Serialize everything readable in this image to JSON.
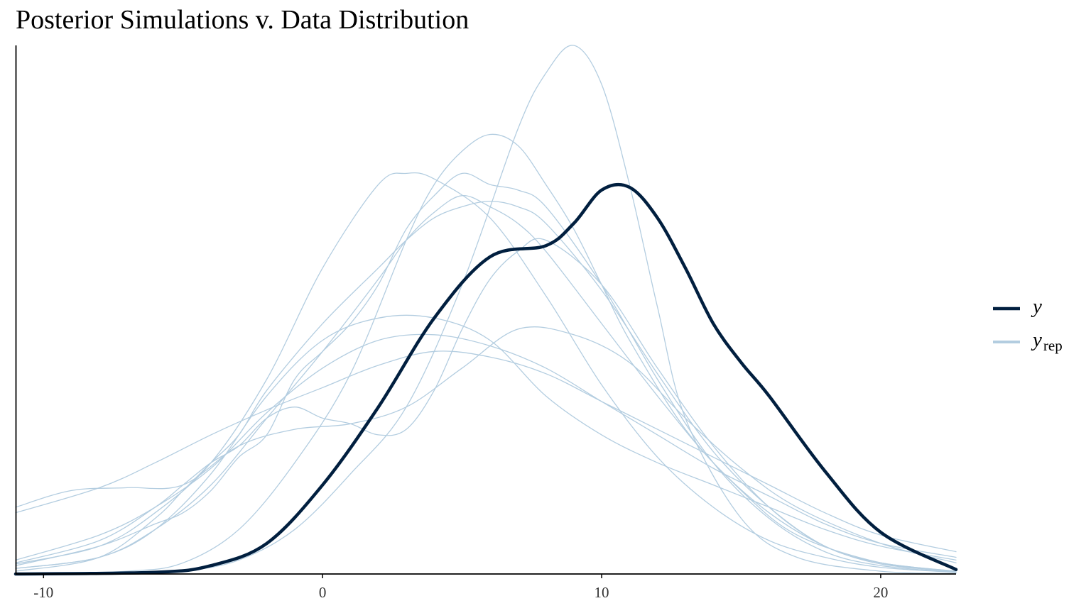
{
  "chart_data": {
    "type": "area",
    "title": "Posterior Simulations v. Data Distribution",
    "xlabel": "",
    "ylabel": "",
    "xlim": [
      -11,
      22.7
    ],
    "ylim": [
      0,
      0.095
    ],
    "x_ticks": [
      -10,
      0,
      10,
      20
    ],
    "x_tick_labels": [
      "-10",
      "0",
      "10",
      "20"
    ],
    "grid": false,
    "legend_position": "right",
    "legend": [
      {
        "key": "y",
        "label": "y",
        "subscript": "",
        "color": "#011f3f"
      },
      {
        "key": "yrep",
        "label": "y",
        "subscript": "rep",
        "color": "#b3cde0"
      }
    ],
    "series": [
      {
        "legend_key": "y",
        "color": "#011f3f",
        "width": 4.5,
        "x": [
          -11,
          -6,
          -4,
          -2,
          0,
          2,
          4,
          6,
          8,
          9,
          10,
          11,
          12,
          13,
          14,
          15,
          16,
          18,
          20,
          22.7
        ],
        "y": [
          0,
          0.0003,
          0.0015,
          0.0055,
          0.016,
          0.03,
          0.046,
          0.057,
          0.059,
          0.063,
          0.069,
          0.0695,
          0.064,
          0.055,
          0.045,
          0.038,
          0.032,
          0.0185,
          0.0075,
          0.0008
        ]
      },
      {
        "legend_key": "yrep",
        "color": "#b3cde0",
        "width": 1.3,
        "x": [
          -11,
          -7,
          -5,
          -3,
          -1,
          1,
          3,
          5,
          7,
          8,
          9,
          10,
          11,
          12,
          13,
          15,
          17,
          20,
          22.7
        ],
        "y": [
          0,
          0,
          0.0005,
          0.0025,
          0.008,
          0.018,
          0.03,
          0.052,
          0.08,
          0.09,
          0.095,
          0.088,
          0.07,
          0.048,
          0.028,
          0.01,
          0.003,
          0.0005,
          0.0001
        ]
      },
      {
        "legend_key": "yrep",
        "color": "#b3cde0",
        "width": 1.3,
        "x": [
          -11,
          -7,
          -5,
          -3,
          -1,
          1,
          3,
          4,
          5,
          6,
          7,
          8,
          9,
          10,
          11,
          13,
          15,
          17,
          20,
          22.7
        ],
        "y": [
          0,
          0.0005,
          0.002,
          0.008,
          0.02,
          0.036,
          0.06,
          0.07,
          0.076,
          0.079,
          0.077,
          0.07,
          0.062,
          0.052,
          0.042,
          0.026,
          0.015,
          0.007,
          0.002,
          0.0005
        ]
      },
      {
        "legend_key": "yrep",
        "color": "#b3cde0",
        "width": 1.3,
        "x": [
          -11,
          -8,
          -6,
          -4,
          -2,
          0,
          2,
          3,
          4,
          6,
          8,
          10,
          12,
          14,
          16,
          18,
          20,
          22.7
        ],
        "y": [
          0.0018,
          0.005,
          0.011,
          0.02,
          0.035,
          0.055,
          0.07,
          0.072,
          0.071,
          0.064,
          0.05,
          0.034,
          0.021,
          0.012,
          0.006,
          0.003,
          0.0012,
          0.0003
        ]
      },
      {
        "legend_key": "yrep",
        "color": "#b3cde0",
        "width": 1.3,
        "x": [
          -11,
          -8,
          -6,
          -4,
          -2,
          0,
          2,
          3,
          4,
          5,
          6,
          7,
          8,
          10,
          12,
          14,
          16,
          18,
          20,
          22.7
        ],
        "y": [
          0.001,
          0.003,
          0.008,
          0.016,
          0.028,
          0.04,
          0.053,
          0.06,
          0.065,
          0.068,
          0.066,
          0.063,
          0.058,
          0.045,
          0.032,
          0.02,
          0.011,
          0.005,
          0.0018,
          0.0004
        ]
      },
      {
        "legend_key": "yrep",
        "color": "#b3cde0",
        "width": 1.3,
        "x": [
          -11,
          -8,
          -6,
          -5,
          -4,
          -3,
          -2,
          0,
          2,
          3,
          4,
          5,
          6,
          7,
          8,
          10,
          12,
          14,
          16,
          18,
          20,
          22.7
        ],
        "y": [
          0.0005,
          0.003,
          0.01,
          0.015,
          0.02,
          0.025,
          0.033,
          0.045,
          0.055,
          0.06,
          0.064,
          0.066,
          0.067,
          0.066,
          0.063,
          0.051,
          0.036,
          0.022,
          0.012,
          0.005,
          0.002,
          0.0005
        ]
      },
      {
        "legend_key": "yrep",
        "color": "#b3cde0",
        "width": 1.3,
        "x": [
          -11,
          -8,
          -6,
          -4,
          -2,
          0,
          2,
          4,
          6,
          8,
          10,
          12,
          14,
          16,
          18,
          20,
          22.7
        ],
        "y": [
          0.011,
          0.0155,
          0.02,
          0.025,
          0.0295,
          0.0335,
          0.0375,
          0.04,
          0.039,
          0.036,
          0.031,
          0.026,
          0.021,
          0.016,
          0.011,
          0.007,
          0.004
        ]
      },
      {
        "legend_key": "yrep",
        "color": "#b3cde0",
        "width": 1.3,
        "x": [
          -11,
          -8,
          -6,
          -4,
          -2,
          0,
          2,
          4,
          6,
          8,
          10,
          12,
          14,
          16,
          18,
          20,
          22.7
        ],
        "y": [
          0.0025,
          0.007,
          0.012,
          0.019,
          0.029,
          0.037,
          0.042,
          0.043,
          0.041,
          0.037,
          0.031,
          0.025,
          0.019,
          0.014,
          0.009,
          0.0055,
          0.003
        ]
      },
      {
        "legend_key": "yrep",
        "color": "#b3cde0",
        "width": 1.3,
        "x": [
          -11,
          -8,
          -6,
          -4,
          -2,
          0,
          2,
          4,
          6,
          8,
          10,
          12,
          14,
          16,
          18,
          20,
          22.7
        ],
        "y": [
          0.001,
          0.003,
          0.008,
          0.018,
          0.032,
          0.042,
          0.046,
          0.046,
          0.042,
          0.032,
          0.025,
          0.02,
          0.016,
          0.012,
          0.008,
          0.005,
          0.0025
        ]
      },
      {
        "legend_key": "yrep",
        "color": "#b3cde0",
        "width": 1.3,
        "x": [
          -11,
          -9,
          -7,
          -5,
          -3,
          -1,
          1,
          3,
          5,
          7,
          9,
          11,
          13,
          15,
          17,
          20,
          22.7
        ],
        "y": [
          0.012,
          0.015,
          0.0155,
          0.016,
          0.023,
          0.026,
          0.027,
          0.03,
          0.037,
          0.044,
          0.043,
          0.038,
          0.028,
          0.019,
          0.012,
          0.0055,
          0.002
        ]
      },
      {
        "legend_key": "yrep",
        "color": "#b3cde0",
        "width": 1.3,
        "x": [
          -11,
          -8,
          -6,
          -5,
          -4,
          -3,
          -2,
          -1,
          0,
          1,
          2,
          3,
          4,
          5,
          6,
          7,
          8,
          10,
          12,
          14,
          16,
          18,
          20,
          22.7
        ],
        "y": [
          0.002,
          0.006,
          0.012,
          0.016,
          0.02,
          0.023,
          0.028,
          0.03,
          0.028,
          0.027,
          0.025,
          0.026,
          0.033,
          0.044,
          0.053,
          0.058,
          0.06,
          0.052,
          0.037,
          0.023,
          0.012,
          0.005,
          0.002,
          0.0005
        ]
      },
      {
        "legend_key": "yrep",
        "color": "#b3cde0",
        "width": 1.3,
        "x": [
          -11,
          -8,
          -6,
          -5,
          -4,
          -3,
          -2,
          -1,
          0,
          1,
          2,
          3,
          4,
          5,
          6,
          7,
          8,
          10,
          12,
          14,
          16,
          18,
          20,
          22.7
        ],
        "y": [
          0.0015,
          0.005,
          0.009,
          0.011,
          0.015,
          0.021,
          0.025,
          0.035,
          0.04,
          0.045,
          0.052,
          0.062,
          0.068,
          0.072,
          0.07,
          0.069,
          0.066,
          0.052,
          0.035,
          0.02,
          0.01,
          0.004,
          0.0015,
          0.0003
        ]
      }
    ]
  }
}
